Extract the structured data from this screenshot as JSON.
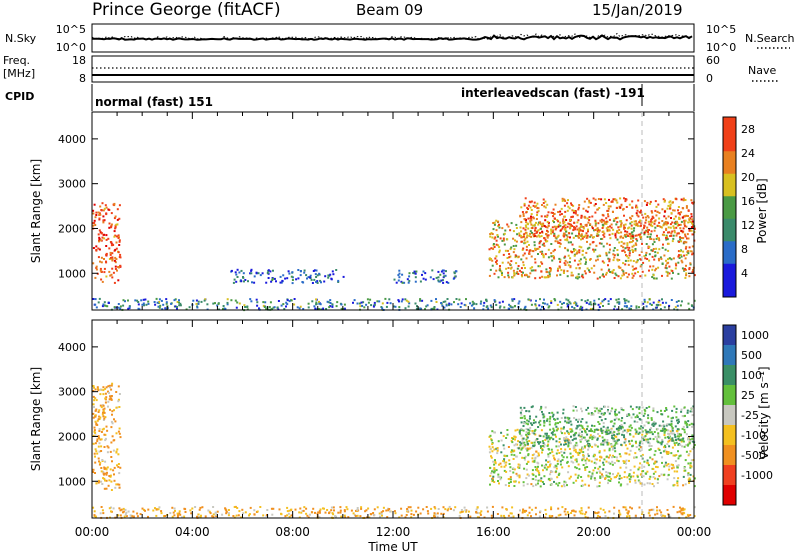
{
  "header": {
    "site": "Prince George (fitACF)",
    "beam": "Beam 09",
    "date": "15/Jan/2019"
  },
  "noise_panel": {
    "left_label": "N.Sky",
    "left_ticks": [
      "10^5",
      "10^0"
    ],
    "right_label": "N.Search",
    "right_ticks": [
      "10^5",
      "10^0"
    ]
  },
  "freq_panel": {
    "left_label_line1": "Freq.",
    "left_label_line2": "[MHz]",
    "left_ticks": [
      "18",
      "8"
    ],
    "right_label": "Nave",
    "right_ticks": [
      "60",
      "0"
    ]
  },
  "cpid": {
    "label": "CPID",
    "segments": [
      {
        "text": "normal (fast) 151",
        "start_hour": 0.0
      },
      {
        "text": "interleavedscan (fast) -191",
        "start_hour": 16.6,
        "marker_hour": 21.9
      }
    ]
  },
  "time_axis": {
    "label": "Time UT",
    "ticks": [
      "00:00",
      "04:00",
      "08:00",
      "12:00",
      "16:00",
      "20:00",
      "00:00"
    ]
  },
  "chart_data": [
    {
      "type": "heatmap",
      "title": "Power",
      "xlabel": "Time UT",
      "ylabel": "Slant Range [km]",
      "xlim_hours": [
        0,
        24
      ],
      "ylim": [
        180,
        4600
      ],
      "yticks": [
        1000,
        2000,
        3000,
        4000
      ],
      "colorbar": {
        "label": "Power [dB]",
        "ticks": [
          "4",
          "8",
          "12",
          "16",
          "20",
          "24",
          "28"
        ],
        "range": [
          0,
          30
        ]
      },
      "echo_regions": [
        {
          "hours": [
            0.0,
            1.1
          ],
          "range_km": [
            800,
            2600
          ],
          "level": 26
        },
        {
          "hours": [
            0.0,
            24.0
          ],
          "range_km": [
            200,
            450
          ],
          "level": 10
        },
        {
          "hours": [
            5.5,
            10.0
          ],
          "range_km": [
            800,
            1100
          ],
          "level": 6
        },
        {
          "hours": [
            12.0,
            14.5
          ],
          "range_km": [
            800,
            1100
          ],
          "level": 6
        },
        {
          "hours": [
            15.8,
            24.0
          ],
          "range_km": [
            900,
            2200
          ],
          "level": 20
        },
        {
          "hours": [
            17.0,
            24.0
          ],
          "range_km": [
            1800,
            2700
          ],
          "level": 24
        }
      ]
    },
    {
      "type": "heatmap",
      "title": "Velocity",
      "xlabel": "Time UT",
      "ylabel": "Slant Range [km]",
      "xlim_hours": [
        0,
        24
      ],
      "ylim": [
        180,
        4600
      ],
      "yticks": [
        1000,
        2000,
        3000,
        4000
      ],
      "colorbar": {
        "label": "Velocity [m s⁻¹]",
        "ticks": [
          "1000",
          "500",
          "100",
          "25",
          "-25",
          "-100",
          "-500",
          "-1000"
        ]
      },
      "echo_regions": [
        {
          "hours": [
            0.0,
            1.1
          ],
          "range_km": [
            800,
            3200
          ],
          "velocity": -100
        },
        {
          "hours": [
            0.0,
            24.0
          ],
          "range_km": [
            200,
            450
          ],
          "velocity": -100
        },
        {
          "hours": [
            15.8,
            24.0
          ],
          "range_km": [
            900,
            2200
          ],
          "velocity": 0
        },
        {
          "hours": [
            17.0,
            24.0
          ],
          "range_km": [
            1800,
            2700
          ],
          "velocity": 100
        }
      ]
    }
  ]
}
